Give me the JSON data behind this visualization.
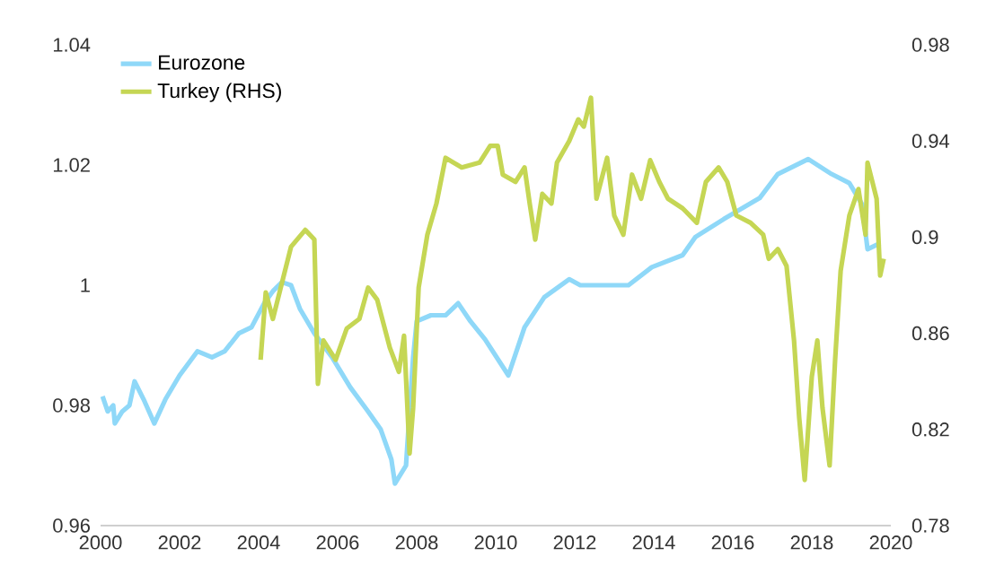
{
  "chart_data": {
    "type": "line",
    "legend": "top left",
    "grid": false,
    "marker": "none",
    "line_style": "solid",
    "xlim": [
      2000,
      2020
    ],
    "xticks": [
      2000,
      2002,
      2004,
      2006,
      2008,
      2010,
      2012,
      2014,
      2016,
      2018,
      2020
    ],
    "ylim": [
      0.96,
      1.04
    ],
    "yticks": [
      0.96,
      0.98,
      1,
      1.02,
      1.04
    ],
    "y2lim": [
      0.78,
      0.98
    ],
    "y2ticks": [
      0.78,
      0.82,
      0.86,
      0.9,
      0.94,
      0.98
    ],
    "series": [
      {
        "name": "Eurozone",
        "color": "#8fd8f8",
        "x": [
          2000.05,
          2000.18,
          2000.32,
          2000.36,
          2000.55,
          2000.73,
          2000.86,
          2001.09,
          2001.36,
          2001.64,
          2002.0,
          2002.45,
          2002.82,
          2003.14,
          2003.5,
          2003.82,
          2004.14,
          2004.36,
          2004.59,
          2004.82,
          2005.05,
          2005.41,
          2005.86,
          2006.32,
          2006.77,
          2007.09,
          2007.36,
          2007.45,
          2007.73,
          2007.91,
          2008.0,
          2008.36,
          2008.73,
          2009.05,
          2009.36,
          2009.73,
          2010.32,
          2010.73,
          2011.23,
          2011.86,
          2012.14,
          2012.77,
          2013.36,
          2013.95,
          2014.73,
          2015.05,
          2015.77,
          2016.68,
          2017.14,
          2017.91,
          2018.5,
          2018.95,
          2019.27,
          2019.41,
          2019.73
        ],
        "values": [
          0.9815,
          0.979,
          0.98,
          0.977,
          0.979,
          0.98,
          0.984,
          0.981,
          0.977,
          0.981,
          0.985,
          0.989,
          0.988,
          0.989,
          0.992,
          0.993,
          0.997,
          0.999,
          1.0005,
          1.0,
          0.996,
          0.992,
          0.988,
          0.983,
          0.979,
          0.976,
          0.971,
          0.967,
          0.97,
          0.988,
          0.994,
          0.995,
          0.995,
          0.997,
          0.994,
          0.991,
          0.985,
          0.993,
          0.998,
          1.001,
          1.0,
          1.0,
          1.0,
          1.003,
          1.005,
          1.008,
          1.011,
          1.0145,
          1.0185,
          1.021,
          1.0185,
          1.017,
          1.0135,
          1.006,
          1.007
        ]
      },
      {
        "name": "Turkey (RHS)",
        "color": "#c5d654",
        "axis": "y2",
        "x": [
          2004.05,
          2004.18,
          2004.36,
          2004.59,
          2004.82,
          2005.18,
          2005.41,
          2005.5,
          2005.64,
          2005.95,
          2006.23,
          2006.55,
          2006.77,
          2007.0,
          2007.32,
          2007.55,
          2007.68,
          2007.82,
          2007.91,
          2008.05,
          2008.27,
          2008.5,
          2008.73,
          2009.14,
          2009.59,
          2009.86,
          2010.05,
          2010.18,
          2010.5,
          2010.73,
          2010.86,
          2011.0,
          2011.18,
          2011.41,
          2011.55,
          2011.86,
          2012.09,
          2012.23,
          2012.41,
          2012.55,
          2012.82,
          2013.0,
          2013.23,
          2013.45,
          2013.68,
          2013.91,
          2014.14,
          2014.36,
          2014.73,
          2015.09,
          2015.32,
          2015.64,
          2015.86,
          2016.09,
          2016.45,
          2016.77,
          2016.91,
          2017.14,
          2017.36,
          2017.55,
          2017.68,
          2017.82,
          2018.0,
          2018.14,
          2018.27,
          2018.45,
          2018.59,
          2018.73,
          2018.95,
          2019.18,
          2019.36,
          2019.41,
          2019.64,
          2019.73,
          2019.82
        ],
        "values": [
          0.849,
          0.877,
          0.866,
          0.881,
          0.896,
          0.903,
          0.899,
          0.839,
          0.857,
          0.849,
          0.862,
          0.866,
          0.879,
          0.874,
          0.854,
          0.844,
          0.859,
          0.81,
          0.829,
          0.879,
          0.901,
          0.914,
          0.933,
          0.929,
          0.931,
          0.938,
          0.938,
          0.926,
          0.923,
          0.929,
          0.914,
          0.899,
          0.918,
          0.914,
          0.931,
          0.94,
          0.949,
          0.946,
          0.958,
          0.916,
          0.933,
          0.909,
          0.901,
          0.926,
          0.916,
          0.932,
          0.923,
          0.916,
          0.912,
          0.906,
          0.923,
          0.929,
          0.923,
          0.909,
          0.906,
          0.901,
          0.891,
          0.895,
          0.888,
          0.857,
          0.825,
          0.799,
          0.842,
          0.857,
          0.829,
          0.805,
          0.849,
          0.886,
          0.909,
          0.92,
          0.901,
          0.931,
          0.916,
          0.884,
          0.891
        ]
      }
    ]
  }
}
